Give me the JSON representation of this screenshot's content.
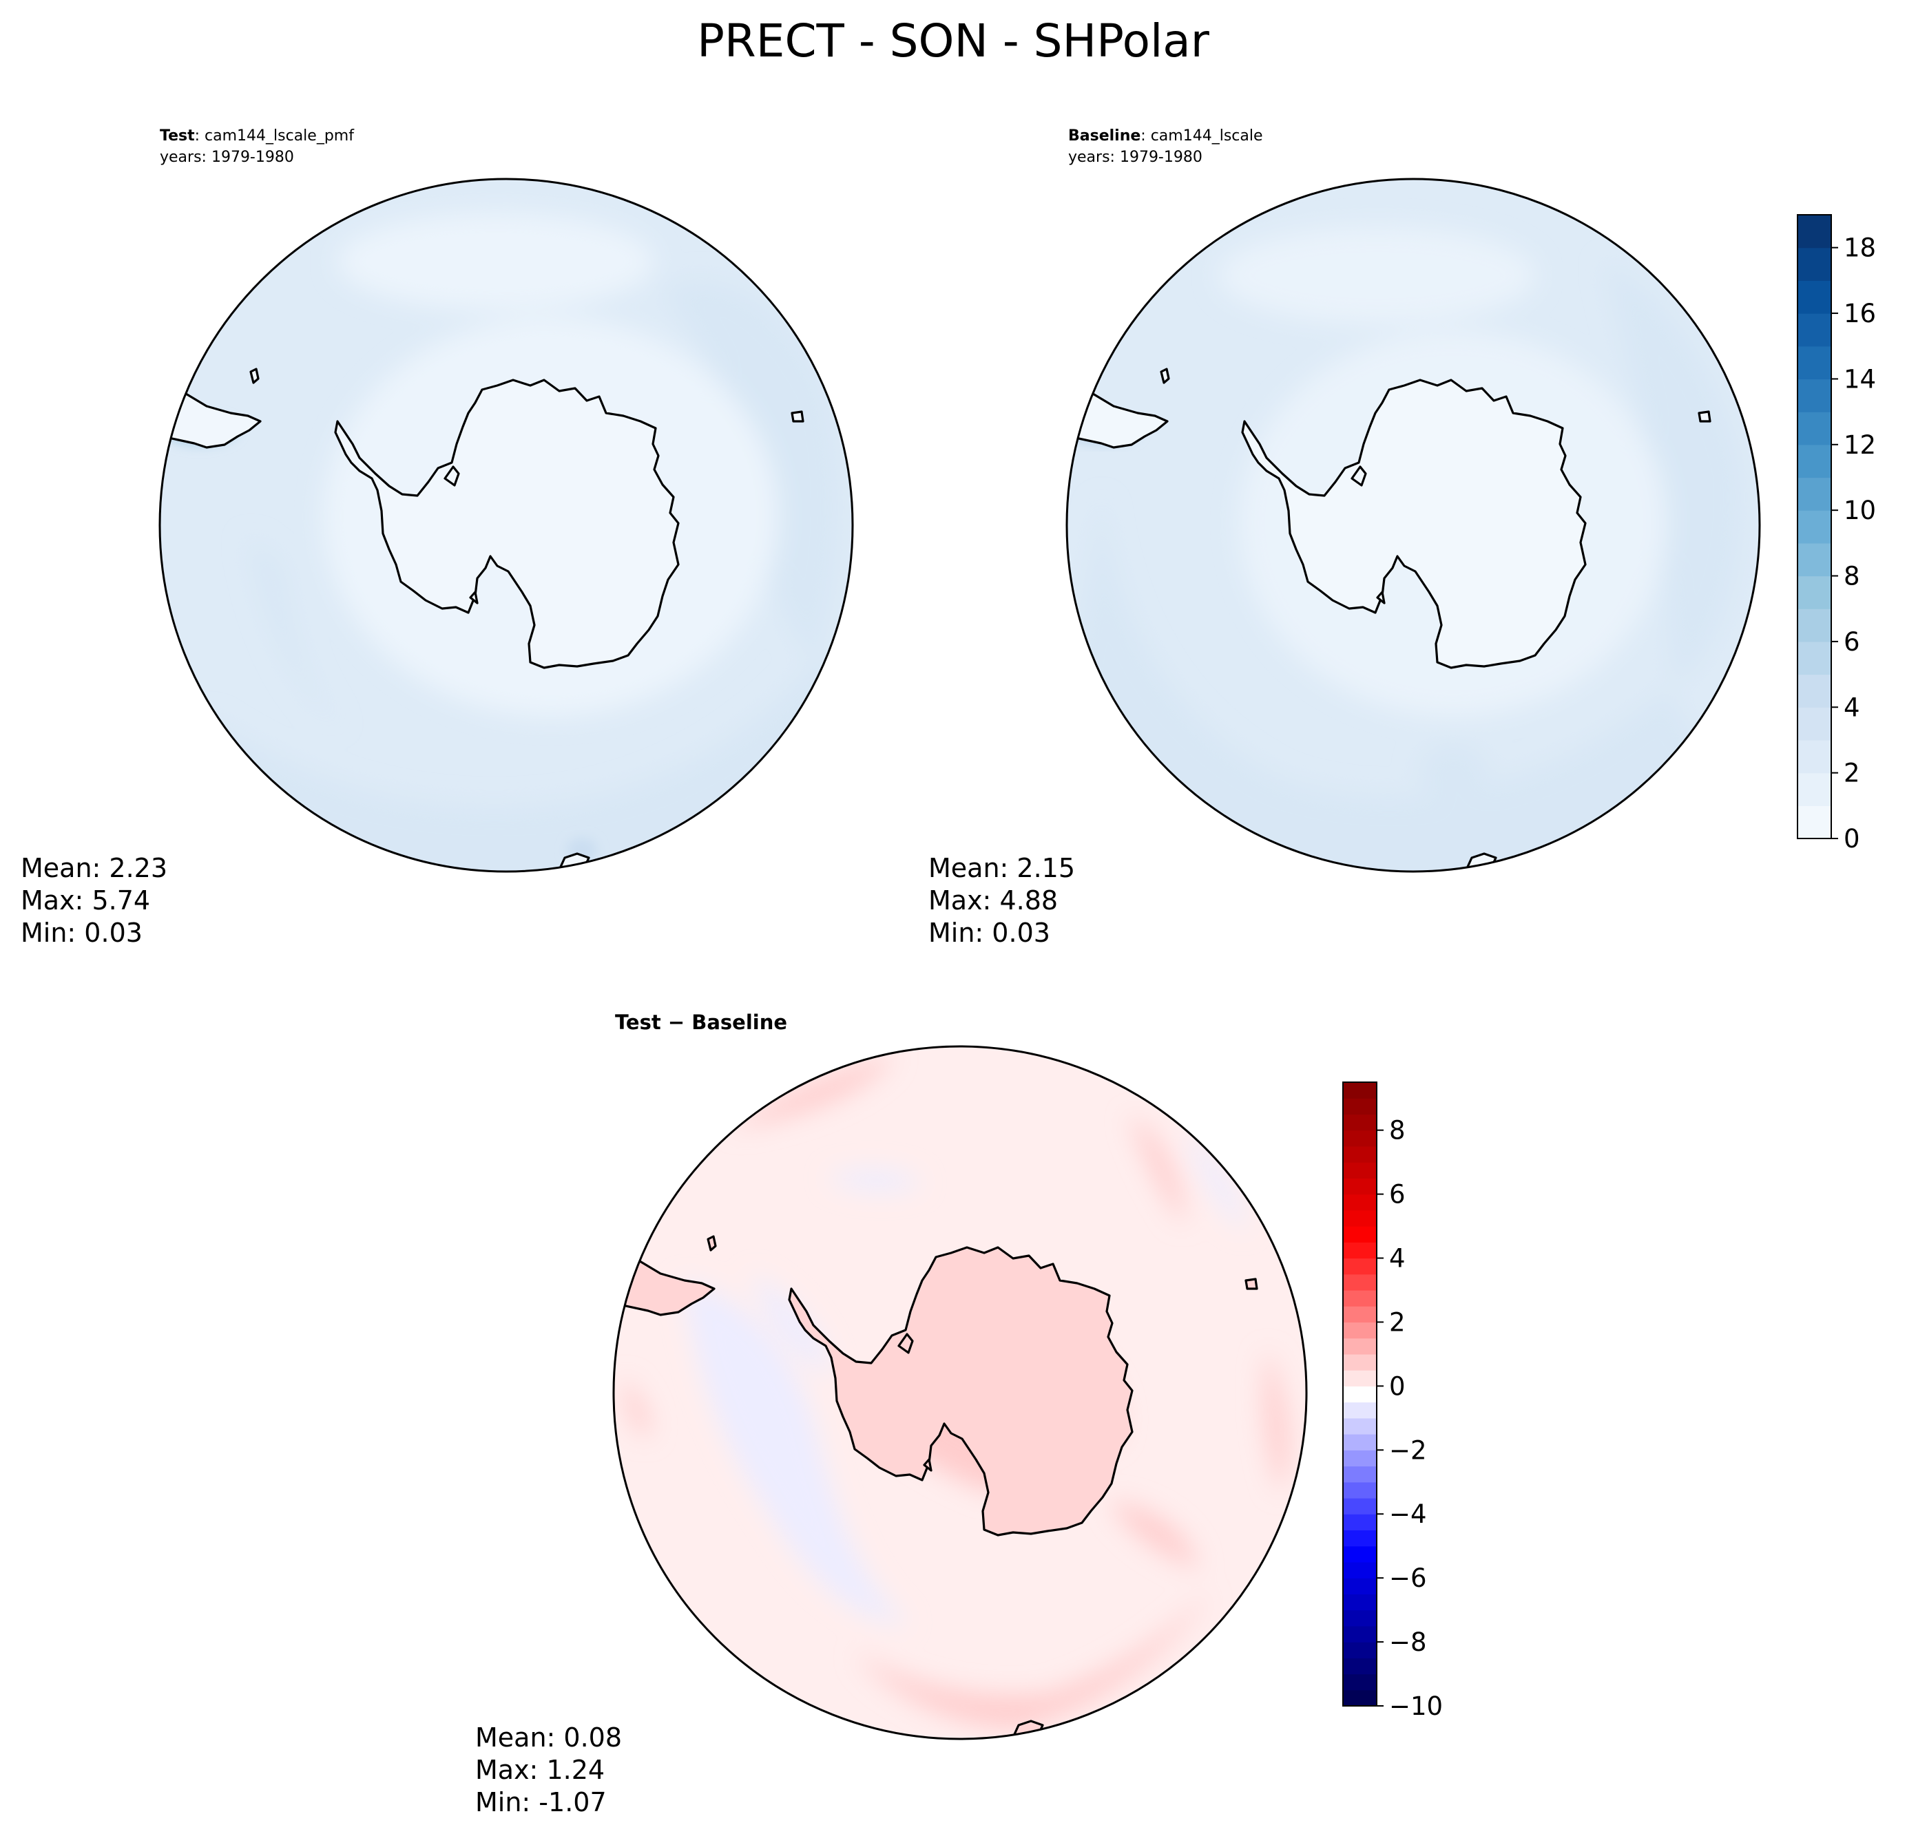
{
  "figure": {
    "title": "PRECT - SON - SHPolar"
  },
  "chart_data": [
    {
      "type": "heatmap",
      "id": "test",
      "label_bold": "Test",
      "label_rest": ": cam144_lscale_pmf",
      "years": "years: 1979-1980",
      "stats": {
        "mean": "Mean:  2.23",
        "max": "Max:  5.74",
        "min": "Min:  0.03"
      },
      "projection": "south polar stereographic",
      "fields": {
        "ocean_level": 3.0,
        "coast_level": 1.0,
        "land_level": 0.6,
        "peak_level": 5.74
      }
    },
    {
      "type": "heatmap",
      "id": "baseline",
      "label_bold": "Baseline",
      "label_rest": ": cam144_lscale",
      "years": "years: 1979-1980",
      "stats": {
        "mean": "Mean:  2.15",
        "max": "Max:  4.88",
        "min": "Min:  0.03"
      },
      "projection": "south polar stereographic",
      "fields": {
        "ocean_level": 3.0,
        "coast_level": 1.2,
        "land_level": 0.5,
        "peak_level": 4.88
      }
    },
    {
      "type": "heatmap",
      "id": "diff",
      "label_bold": "Test − Baseline",
      "label_rest": "",
      "years": "",
      "stats": {
        "mean": "Mean:  0.08",
        "max": "Max:  1.24",
        "min": "Min: -1.07"
      },
      "projection": "south polar stereographic",
      "fields": {
        "background_level": 0.08,
        "positive_level": 0.7,
        "negative_level": -0.6
      }
    }
  ],
  "colorbars": {
    "blues": {
      "cmap": "Blues",
      "range": [
        0,
        19
      ],
      "ticks": [
        0,
        2,
        4,
        6,
        8,
        10,
        12,
        14,
        16,
        18
      ],
      "tick_labels": [
        "0",
        "2",
        "4",
        "6",
        "8",
        "10",
        "12",
        "14",
        "16",
        "18"
      ]
    },
    "seismic": {
      "cmap": "seismic",
      "range": [
        -10,
        9.5
      ],
      "ticks": [
        -10,
        -8,
        -6,
        -4,
        -2,
        0,
        2,
        4,
        6,
        8
      ],
      "tick_labels": [
        "−10",
        "−8",
        "−6",
        "−4",
        "−2",
        "0",
        "2",
        "4",
        "6",
        "8"
      ]
    }
  }
}
